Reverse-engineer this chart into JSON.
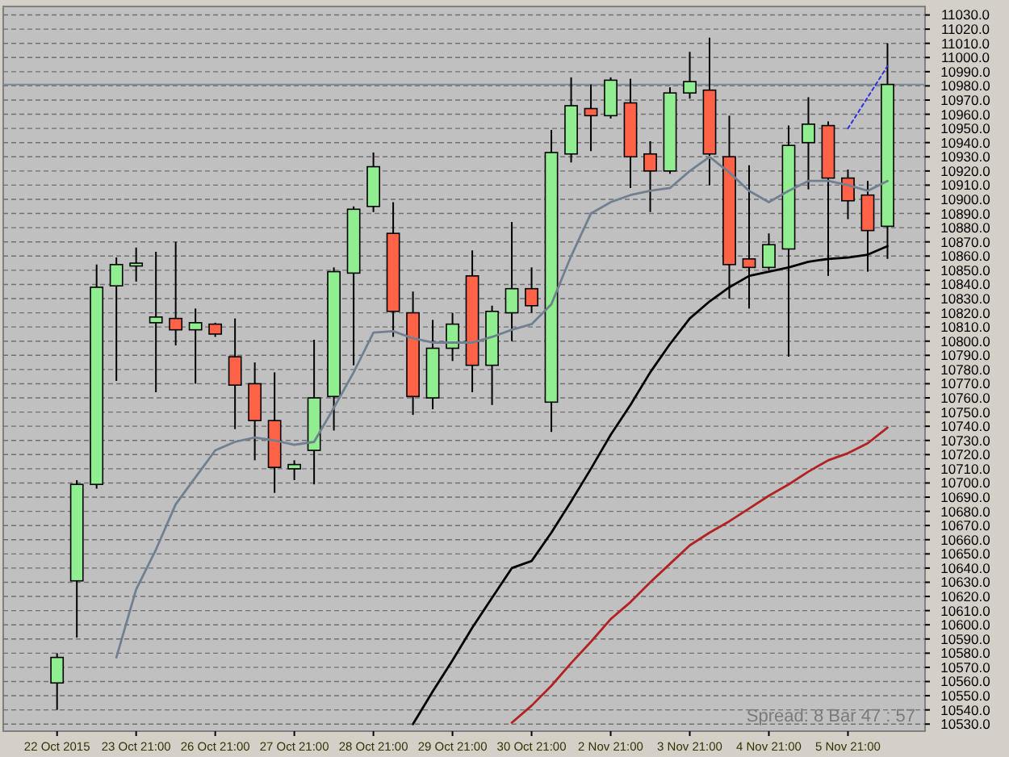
{
  "chart_data": {
    "type": "candlestick",
    "categories": [
      "22 Oct 2015",
      null,
      null,
      null,
      "23 Oct 21:00",
      null,
      null,
      null,
      "26 Oct 21:00",
      null,
      null,
      null,
      "27 Oct 21:00",
      null,
      null,
      null,
      "28 Oct 21:00",
      null,
      null,
      null,
      "29 Oct 21:00",
      null,
      null,
      null,
      "30 Oct 21:00",
      null,
      null,
      null,
      "2 Nov 21:00",
      null,
      null,
      null,
      "3 Nov 21:00",
      null,
      null,
      null,
      "4 Nov 21:00",
      null,
      null,
      null,
      "5 Nov 21:00",
      null,
      null
    ],
    "ohlc": [
      [
        10559,
        10580,
        10540,
        10577
      ],
      [
        10631,
        10702,
        10591,
        10699
      ],
      [
        10699,
        10854,
        10696,
        10838
      ],
      [
        10839,
        10859,
        10772,
        10854
      ],
      [
        10853,
        10866,
        10842,
        10855
      ],
      [
        10813,
        10863,
        10764,
        10817
      ],
      [
        10816,
        10870,
        10797,
        10808
      ],
      [
        10808,
        10823,
        10770,
        10813
      ],
      [
        10812,
        10813,
        10803,
        10805
      ],
      [
        10789,
        10816,
        10738,
        10769
      ],
      [
        10770,
        10785,
        10716,
        10744
      ],
      [
        10744,
        10778,
        10693,
        10711
      ],
      [
        10710,
        10716,
        10702,
        10713
      ],
      [
        10723,
        10801,
        10699,
        10760
      ],
      [
        10761,
        10852,
        10737,
        10849
      ],
      [
        10848,
        10895,
        10783,
        10893
      ],
      [
        10895,
        10933,
        10891,
        10923
      ],
      [
        10876,
        10898,
        10803,
        10821
      ],
      [
        10820,
        10835,
        10748,
        10761
      ],
      [
        10760,
        10815,
        10752,
        10795
      ],
      [
        10795,
        10820,
        10786,
        10812
      ],
      [
        10846,
        10864,
        10764,
        10783
      ],
      [
        10783,
        10825,
        10755,
        10821
      ],
      [
        10820,
        10884,
        10800,
        10837
      ],
      [
        10837,
        10852,
        10820,
        10825
      ],
      [
        10757,
        10949,
        10736,
        10933
      ],
      [
        10932,
        10986,
        10926,
        10966
      ],
      [
        10964,
        10981,
        10934,
        10959
      ],
      [
        10959,
        10986,
        10957,
        10984
      ],
      [
        10968,
        10985,
        10908,
        10930
      ],
      [
        10932,
        10941,
        10891,
        10920
      ],
      [
        10920,
        10979,
        10918,
        10975
      ],
      [
        10975,
        11004,
        10971,
        10983
      ],
      [
        10977,
        11014,
        10910,
        10932
      ],
      [
        10930,
        10959,
        10830,
        10854
      ],
      [
        10858,
        10924,
        10823,
        10852
      ],
      [
        10852,
        10876,
        10850,
        10868
      ],
      [
        10865,
        10952,
        10789,
        10938
      ],
      [
        10940,
        10972,
        10907,
        10953
      ],
      [
        10952,
        10955,
        10846,
        10915
      ],
      [
        10915,
        10921,
        10886,
        10899
      ],
      [
        10903,
        10913,
        10849,
        10878
      ],
      [
        10881,
        11010,
        10858,
        10981
      ]
    ],
    "colors": [
      "#90ee90",
      "#90ee90",
      "#90ee90",
      "#90ee90",
      "#90ee90",
      "#90ee90",
      "#ff6347",
      "#90ee90",
      "#ff6347",
      "#ff6347",
      "#ff6347",
      "#ff6347",
      "#90ee90",
      "#90ee90",
      "#90ee90",
      "#90ee90",
      "#90ee90",
      "#ff6347",
      "#ff6347",
      "#90ee90",
      "#90ee90",
      "#ff6347",
      "#90ee90",
      "#90ee90",
      "#ff6347",
      "#90ee90",
      "#90ee90",
      "#ff6347",
      "#90ee90",
      "#ff6347",
      "#ff6347",
      "#90ee90",
      "#90ee90",
      "#ff6347",
      "#ff6347",
      "#ff6347",
      "#90ee90",
      "#90ee90",
      "#90ee90",
      "#ff6347",
      "#ff6347",
      "#ff6347",
      "#90ee90"
    ],
    "series": [
      {
        "type": "line",
        "color": "#708090",
        "values": [
          null,
          null,
          null,
          10577,
          10625,
          10653,
          10685,
          10704,
          10723,
          10729,
          10732,
          10730,
          10727,
          10729,
          10753,
          10778,
          10806,
          10807,
          10802,
          10799,
          10799,
          10799,
          10803,
          10808,
          10812,
          10826,
          10860,
          10890,
          10898,
          10903,
          10906,
          10908,
          10920,
          10930,
          10919,
          10906,
          10898,
          10906,
          10913,
          10913,
          10910,
          10906,
          10913
        ]
      },
      {
        "type": "line",
        "color": "#000000",
        "values": [
          null,
          null,
          null,
          null,
          null,
          null,
          null,
          null,
          null,
          null,
          null,
          null,
          null,
          null,
          null,
          null,
          null,
          null,
          10530,
          10553,
          10575,
          10598,
          10619,
          10640,
          10645,
          10665,
          10687,
          10710,
          10734,
          10755,
          10778,
          10798,
          10816,
          10828,
          10838,
          10846,
          10849,
          10852,
          10856,
          10858,
          10859,
          10861,
          10867
        ]
      },
      {
        "type": "line",
        "color": "#b22222",
        "values": [
          null,
          null,
          null,
          null,
          null,
          null,
          null,
          null,
          null,
          null,
          null,
          null,
          null,
          null,
          null,
          null,
          null,
          null,
          null,
          null,
          null,
          null,
          null,
          10531,
          10543,
          10557,
          10573,
          10588,
          10604,
          10616,
          10630,
          10643,
          10656,
          10665,
          10673,
          10682,
          10691,
          10699,
          10708,
          10716,
          10721,
          10728,
          10739
        ]
      },
      {
        "type": "line",
        "color": "#3030e0",
        "line_style": "dotted",
        "values": [
          null,
          null,
          null,
          null,
          null,
          null,
          null,
          null,
          null,
          null,
          null,
          null,
          null,
          null,
          null,
          null,
          null,
          null,
          null,
          null,
          null,
          null,
          null,
          null,
          null,
          null,
          null,
          null,
          null,
          null,
          null,
          null,
          null,
          null,
          null,
          null,
          null,
          null,
          null,
          null,
          10950,
          10972,
          10994
        ]
      }
    ],
    "ylim": [
      10525,
      11036
    ],
    "yticks": [
      {
        "value": 10530,
        "label": "10530.0"
      },
      {
        "value": 10540,
        "label": "10540.0"
      },
      {
        "value": 10550,
        "label": "10550.0"
      },
      {
        "value": 10560,
        "label": "10560.0"
      },
      {
        "value": 10570,
        "label": "10570.0"
      },
      {
        "value": 10580,
        "label": "10580.0"
      },
      {
        "value": 10590,
        "label": "10590.0"
      },
      {
        "value": 10600,
        "label": "10600.0"
      },
      {
        "value": 10610,
        "label": "10610.0"
      },
      {
        "value": 10620,
        "label": "10620.0"
      },
      {
        "value": 10630,
        "label": "10630.0"
      },
      {
        "value": 10640,
        "label": "10640.0"
      },
      {
        "value": 10650,
        "label": "10650.0"
      },
      {
        "value": 10660,
        "label": "10660.0"
      },
      {
        "value": 10670,
        "label": "10670.0"
      },
      {
        "value": 10680,
        "label": "10680.0"
      },
      {
        "value": 10690,
        "label": "10690.0"
      },
      {
        "value": 10700,
        "label": "10700.0"
      },
      {
        "value": 10710,
        "label": "10710.0"
      },
      {
        "value": 10720,
        "label": "10720.0"
      },
      {
        "value": 10730,
        "label": "10730.0"
      },
      {
        "value": 10740,
        "label": "10740.0"
      },
      {
        "value": 10750,
        "label": "10750.0"
      },
      {
        "value": 10760,
        "label": "10760.0"
      },
      {
        "value": 10770,
        "label": "10770.0"
      },
      {
        "value": 10780,
        "label": "10780.0"
      },
      {
        "value": 10790,
        "label": "10790.0"
      },
      {
        "value": 10800,
        "label": "10800.0"
      },
      {
        "value": 10810,
        "label": "10810.0"
      },
      {
        "value": 10820,
        "label": "10820.0"
      },
      {
        "value": 10830,
        "label": "10830.0"
      },
      {
        "value": 10840,
        "label": "10840.0"
      },
      {
        "value": 10850,
        "label": "10850.0"
      },
      {
        "value": 10860,
        "label": "10860.0"
      },
      {
        "value": 10870,
        "label": "10870.0"
      },
      {
        "value": 10880,
        "label": "10880.0"
      },
      {
        "value": 10890,
        "label": "10890.0"
      },
      {
        "value": 10900,
        "label": "10900.0"
      },
      {
        "value": 10910,
        "label": "10910.0"
      },
      {
        "value": 10920,
        "label": "10920.0"
      },
      {
        "value": 10930,
        "label": "10930.0"
      },
      {
        "value": 10940,
        "label": "10940.0"
      },
      {
        "value": 10950,
        "label": "10950.0"
      },
      {
        "value": 10960,
        "label": "10960.0"
      },
      {
        "value": 10970,
        "label": "10970.0"
      },
      {
        "value": 10980,
        "label": "10980.0"
      },
      {
        "value": 10990,
        "label": "10990.0"
      },
      {
        "value": 11000,
        "label": "11000.0"
      },
      {
        "value": 11010,
        "label": "11010.0"
      },
      {
        "value": 11020,
        "label": "11020.0"
      },
      {
        "value": 11030,
        "label": "11030.0"
      }
    ],
    "ref_lines": [
      {
        "axis": "y",
        "value": 10981,
        "color": "#7a8a99"
      }
    ],
    "grid": "y",
    "annotations": [
      "Spread: 8   Bar  47 : 57"
    ]
  }
}
